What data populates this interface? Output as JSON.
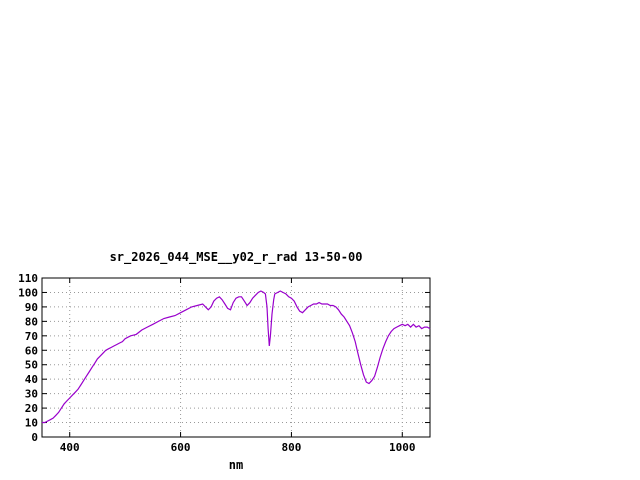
{
  "chart_data": {
    "type": "line",
    "title": "sr_2026_044_MSE__y02_r_rad 13-50-00",
    "xlabel": "nm",
    "ylabel": "",
    "xlim": [
      350,
      1050
    ],
    "ylim": [
      0,
      110
    ],
    "xticks": [
      400,
      600,
      800,
      1000
    ],
    "yticks": [
      0,
      10,
      20,
      30,
      40,
      50,
      60,
      70,
      80,
      90,
      100,
      110
    ],
    "grid": true,
    "legend": false,
    "line_color": "#9900cc",
    "grid_color": "#999999",
    "border_color": "#000000",
    "points": [
      [
        350,
        10
      ],
      [
        355,
        10
      ],
      [
        360,
        11
      ],
      [
        365,
        12
      ],
      [
        370,
        13
      ],
      [
        375,
        15
      ],
      [
        380,
        17
      ],
      [
        385,
        20
      ],
      [
        390,
        23
      ],
      [
        395,
        25
      ],
      [
        400,
        27
      ],
      [
        405,
        29
      ],
      [
        410,
        31
      ],
      [
        415,
        33
      ],
      [
        420,
        36
      ],
      [
        425,
        39
      ],
      [
        430,
        42
      ],
      [
        435,
        45
      ],
      [
        440,
        48
      ],
      [
        445,
        51
      ],
      [
        450,
        54
      ],
      [
        455,
        56
      ],
      [
        460,
        58
      ],
      [
        465,
        60
      ],
      [
        470,
        61
      ],
      [
        475,
        62
      ],
      [
        480,
        63
      ],
      [
        485,
        64
      ],
      [
        490,
        65
      ],
      [
        495,
        66
      ],
      [
        500,
        68
      ],
      [
        510,
        70
      ],
      [
        520,
        71
      ],
      [
        530,
        74
      ],
      [
        540,
        76
      ],
      [
        550,
        78
      ],
      [
        560,
        80
      ],
      [
        570,
        82
      ],
      [
        580,
        83
      ],
      [
        590,
        84
      ],
      [
        600,
        86
      ],
      [
        610,
        88
      ],
      [
        620,
        90
      ],
      [
        630,
        91
      ],
      [
        640,
        92
      ],
      [
        645,
        90
      ],
      [
        650,
        88
      ],
      [
        655,
        90
      ],
      [
        660,
        94
      ],
      [
        665,
        96
      ],
      [
        670,
        97
      ],
      [
        675,
        95
      ],
      [
        680,
        92
      ],
      [
        685,
        89
      ],
      [
        690,
        88
      ],
      [
        695,
        93
      ],
      [
        700,
        96
      ],
      [
        705,
        97
      ],
      [
        710,
        97
      ],
      [
        715,
        94
      ],
      [
        720,
        91
      ],
      [
        725,
        93
      ],
      [
        730,
        96
      ],
      [
        735,
        98
      ],
      [
        740,
        100
      ],
      [
        745,
        101
      ],
      [
        750,
        100
      ],
      [
        753,
        99
      ],
      [
        756,
        90
      ],
      [
        758,
        75
      ],
      [
        760,
        63
      ],
      [
        762,
        70
      ],
      [
        765,
        85
      ],
      [
        768,
        95
      ],
      [
        770,
        99
      ],
      [
        775,
        100
      ],
      [
        780,
        101
      ],
      [
        785,
        100
      ],
      [
        790,
        99
      ],
      [
        795,
        97
      ],
      [
        800,
        96
      ],
      [
        805,
        94
      ],
      [
        810,
        90
      ],
      [
        815,
        87
      ],
      [
        820,
        86
      ],
      [
        825,
        88
      ],
      [
        830,
        90
      ],
      [
        835,
        91
      ],
      [
        840,
        92
      ],
      [
        845,
        92
      ],
      [
        850,
        93
      ],
      [
        855,
        92
      ],
      [
        860,
        92
      ],
      [
        865,
        92
      ],
      [
        870,
        91
      ],
      [
        875,
        91
      ],
      [
        880,
        90
      ],
      [
        885,
        88
      ],
      [
        890,
        85
      ],
      [
        895,
        83
      ],
      [
        900,
        80
      ],
      [
        905,
        77
      ],
      [
        910,
        72
      ],
      [
        915,
        66
      ],
      [
        920,
        58
      ],
      [
        925,
        50
      ],
      [
        930,
        43
      ],
      [
        935,
        38
      ],
      [
        940,
        37
      ],
      [
        945,
        39
      ],
      [
        950,
        42
      ],
      [
        955,
        48
      ],
      [
        960,
        55
      ],
      [
        965,
        61
      ],
      [
        970,
        66
      ],
      [
        975,
        70
      ],
      [
        980,
        73
      ],
      [
        985,
        75
      ],
      [
        990,
        76
      ],
      [
        995,
        77
      ],
      [
        1000,
        78
      ],
      [
        1005,
        77
      ],
      [
        1010,
        78
      ],
      [
        1015,
        76
      ],
      [
        1020,
        78
      ],
      [
        1025,
        76
      ],
      [
        1030,
        77
      ],
      [
        1035,
        75
      ],
      [
        1040,
        76
      ],
      [
        1045,
        76
      ],
      [
        1050,
        75
      ]
    ]
  }
}
